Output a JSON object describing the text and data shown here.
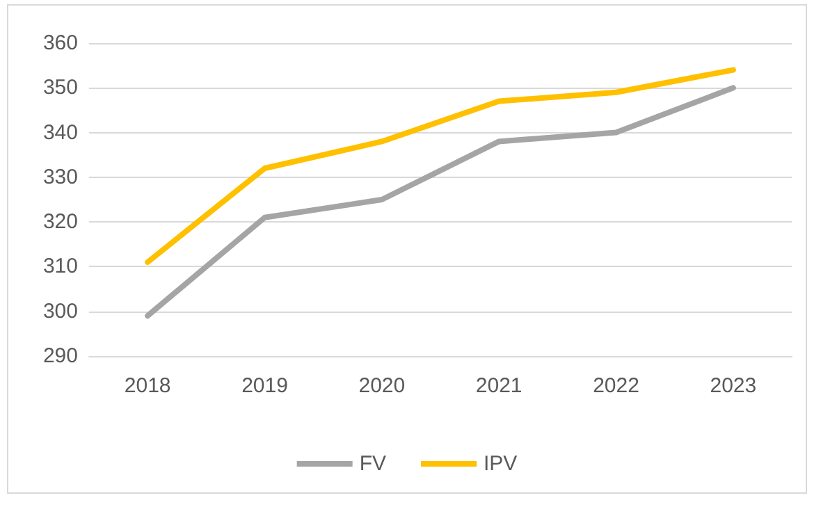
{
  "chart_data": {
    "type": "line",
    "categories": [
      "2018",
      "2019",
      "2020",
      "2021",
      "2022",
      "2023"
    ],
    "series": [
      {
        "name": "FV",
        "color": "#a5a5a5",
        "values": [
          299,
          321,
          325,
          338,
          340,
          350
        ]
      },
      {
        "name": "IPV",
        "color": "#ffc000",
        "values": [
          311,
          332,
          338,
          347,
          349,
          354
        ]
      }
    ],
    "ylim": [
      290,
      360
    ],
    "yticks": [
      290,
      300,
      310,
      320,
      330,
      340,
      350,
      360
    ],
    "grid": "y",
    "legend": "bottom",
    "marker": "none",
    "line_style": "solid"
  }
}
